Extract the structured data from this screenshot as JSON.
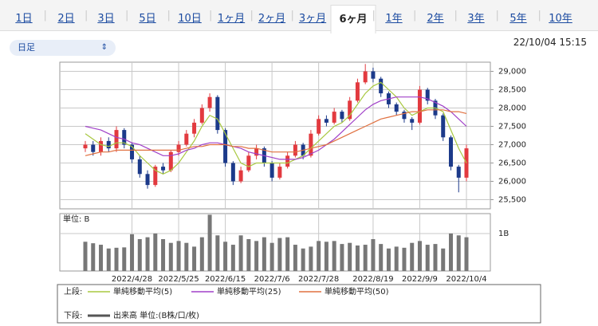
{
  "tabs": [
    "1日",
    "2日",
    "3日",
    "5日",
    "10日",
    "1ヶ月",
    "2ヶ月",
    "3ヶ月",
    "6ヶ月",
    "1年",
    "2年",
    "3年",
    "5年",
    "10年"
  ],
  "selected_tab": 8,
  "period_select": "日足",
  "timestamp": "22/10/04 15:15",
  "chart_data": {
    "type": "candlestick",
    "categories": [
      null,
      null,
      null,
      null,
      null,
      null,
      "2022/4/28",
      null,
      null,
      null,
      null,
      null,
      "2022/5/25",
      null,
      null,
      null,
      null,
      null,
      "2022/6/15",
      null,
      null,
      null,
      null,
      null,
      "2022/7/6",
      null,
      null,
      null,
      null,
      null,
      "2022/7/28",
      null,
      null,
      null,
      null,
      null,
      null,
      "2022/8/19",
      null,
      null,
      null,
      null,
      null,
      "2022/9/9",
      null,
      null,
      null,
      null,
      null,
      "2022/10/4"
    ],
    "open": [
      26900,
      27000,
      26800,
      27100,
      26900,
      27400,
      27000,
      26600,
      26200,
      25900,
      26400,
      26300,
      26800,
      27000,
      27300,
      27600,
      28000,
      28300,
      27400,
      26500,
      26000,
      26300,
      26700,
      26900,
      26500,
      26100,
      26400,
      26700,
      27000,
      26700,
      27300,
      27700,
      27600,
      27900,
      27700,
      28200,
      28700,
      29000,
      28800,
      28400,
      28100,
      27900,
      27700,
      27600,
      28500,
      28200,
      27800,
      27200,
      26400,
      26100
    ],
    "high": [
      27100,
      27100,
      27200,
      27200,
      27500,
      27450,
      27050,
      26700,
      26300,
      26450,
      26500,
      26850,
      27100,
      27400,
      27700,
      28100,
      28400,
      28350,
      27450,
      26550,
      26400,
      26800,
      27000,
      26950,
      26550,
      26500,
      26800,
      27100,
      27050,
      27400,
      27800,
      27800,
      28000,
      27950,
      28300,
      28800,
      29200,
      29100,
      28850,
      28450,
      28150,
      27950,
      27750,
      28600,
      28550,
      28250,
      27850,
      27250,
      26450,
      27000
    ],
    "low": [
      26800,
      26700,
      26700,
      26800,
      26800,
      26900,
      26500,
      26100,
      25800,
      25850,
      26200,
      26250,
      26700,
      26950,
      27200,
      27550,
      27900,
      27300,
      26400,
      25900,
      25950,
      26250,
      26600,
      26400,
      26000,
      26050,
      26350,
      26650,
      26600,
      26650,
      27250,
      27500,
      27550,
      27600,
      27650,
      28150,
      28650,
      28700,
      28300,
      28000,
      27800,
      27600,
      27400,
      27550,
      28100,
      27700,
      27100,
      26300,
      25700,
      26000
    ],
    "close": [
      27000,
      26800,
      27100,
      26900,
      27400,
      27000,
      26600,
      26200,
      25900,
      26400,
      26300,
      26800,
      27000,
      27300,
      27600,
      28000,
      28300,
      27400,
      26500,
      26000,
      26300,
      26700,
      26900,
      26500,
      26100,
      26400,
      26700,
      27000,
      26700,
      27300,
      27700,
      27600,
      27900,
      27700,
      28200,
      28700,
      29000,
      28800,
      28400,
      28100,
      27900,
      27700,
      27600,
      28500,
      28200,
      27800,
      27200,
      26400,
      26100,
      26900
    ],
    "up_color": "#e23a3f",
    "down_color": "#1c3a8a",
    "ylim": [
      25250,
      29250
    ],
    "yticks": [
      {
        "value": 25500,
        "label": "25,500"
      },
      {
        "value": 26000,
        "label": "26,000"
      },
      {
        "value": 26500,
        "label": "26,500"
      },
      {
        "value": 27000,
        "label": "27,000"
      },
      {
        "value": 27500,
        "label": "27,500"
      },
      {
        "value": 28000,
        "label": "28,000"
      },
      {
        "value": 28500,
        "label": "28,500"
      },
      {
        "value": 29000,
        "label": "29,000"
      }
    ],
    "grid": true,
    "upper_legend_label": "上段:",
    "lower_legend_label": "下段:",
    "series": [
      {
        "name": "単純移動平均(5)",
        "color": "#a8c840",
        "values": [
          27300,
          27150,
          27000,
          26950,
          27050,
          27050,
          26950,
          26700,
          26500,
          26300,
          26200,
          26300,
          26500,
          26800,
          27100,
          27500,
          27800,
          27700,
          27300,
          26900,
          26500,
          26400,
          26500,
          26500,
          26500,
          26500,
          26500,
          26600,
          26700,
          26900,
          27100,
          27300,
          27500,
          27600,
          27800,
          28100,
          28400,
          28600,
          28700,
          28500,
          28300,
          28000,
          27800,
          27900,
          28000,
          28000,
          27900,
          27400,
          26900,
          26500
        ]
      },
      {
        "name": "単純移動平均(25)",
        "color": "#a040c8",
        "values": [
          27500,
          27450,
          27400,
          27300,
          27200,
          27150,
          27050,
          27000,
          26900,
          26800,
          26700,
          26700,
          26750,
          26850,
          26900,
          27000,
          27050,
          27050,
          27000,
          26950,
          26900,
          26800,
          26750,
          26700,
          26650,
          26600,
          26600,
          26600,
          26650,
          26750,
          26850,
          27000,
          27150,
          27350,
          27550,
          27750,
          27950,
          28100,
          28200,
          28250,
          28300,
          28300,
          28300,
          28300,
          28250,
          28150,
          28050,
          27900,
          27700,
          27500
        ]
      },
      {
        "name": "単純移動平均(50)",
        "color": "#e07040",
        "values": [
          26700,
          26750,
          26800,
          26800,
          26850,
          26850,
          26850,
          26850,
          26850,
          26850,
          26850,
          26850,
          26850,
          26900,
          26950,
          26950,
          27000,
          27000,
          27000,
          26950,
          26950,
          26900,
          26900,
          26850,
          26800,
          26800,
          26800,
          26800,
          26850,
          26900,
          26950,
          27000,
          27100,
          27200,
          27300,
          27400,
          27500,
          27600,
          27700,
          27750,
          27800,
          27850,
          27900,
          27900,
          27950,
          27950,
          27950,
          27900,
          27900,
          27850
        ]
      }
    ],
    "volume": {
      "name": "出来高 単位:(B株/口/枚)",
      "unit_label": "単位: B",
      "color": "#777777",
      "legend_color": "#555555",
      "values": [
        0.78,
        0.74,
        0.7,
        0.6,
        0.62,
        0.63,
        0.98,
        0.85,
        0.9,
        1.0,
        0.85,
        0.75,
        0.8,
        0.75,
        0.65,
        0.9,
        1.5,
        0.95,
        0.78,
        0.7,
        0.95,
        0.85,
        0.8,
        0.9,
        0.75,
        0.88,
        0.9,
        0.7,
        0.6,
        0.65,
        0.8,
        0.78,
        0.8,
        0.72,
        0.75,
        0.68,
        0.7,
        0.85,
        0.72,
        0.6,
        0.65,
        0.62,
        0.75,
        0.8,
        0.7,
        0.72,
        0.6,
        1.0,
        0.95,
        0.9
      ],
      "ylim": [
        0,
        1.53
      ],
      "yticks": [
        {
          "value": 1,
          "label": "1B"
        }
      ]
    }
  }
}
